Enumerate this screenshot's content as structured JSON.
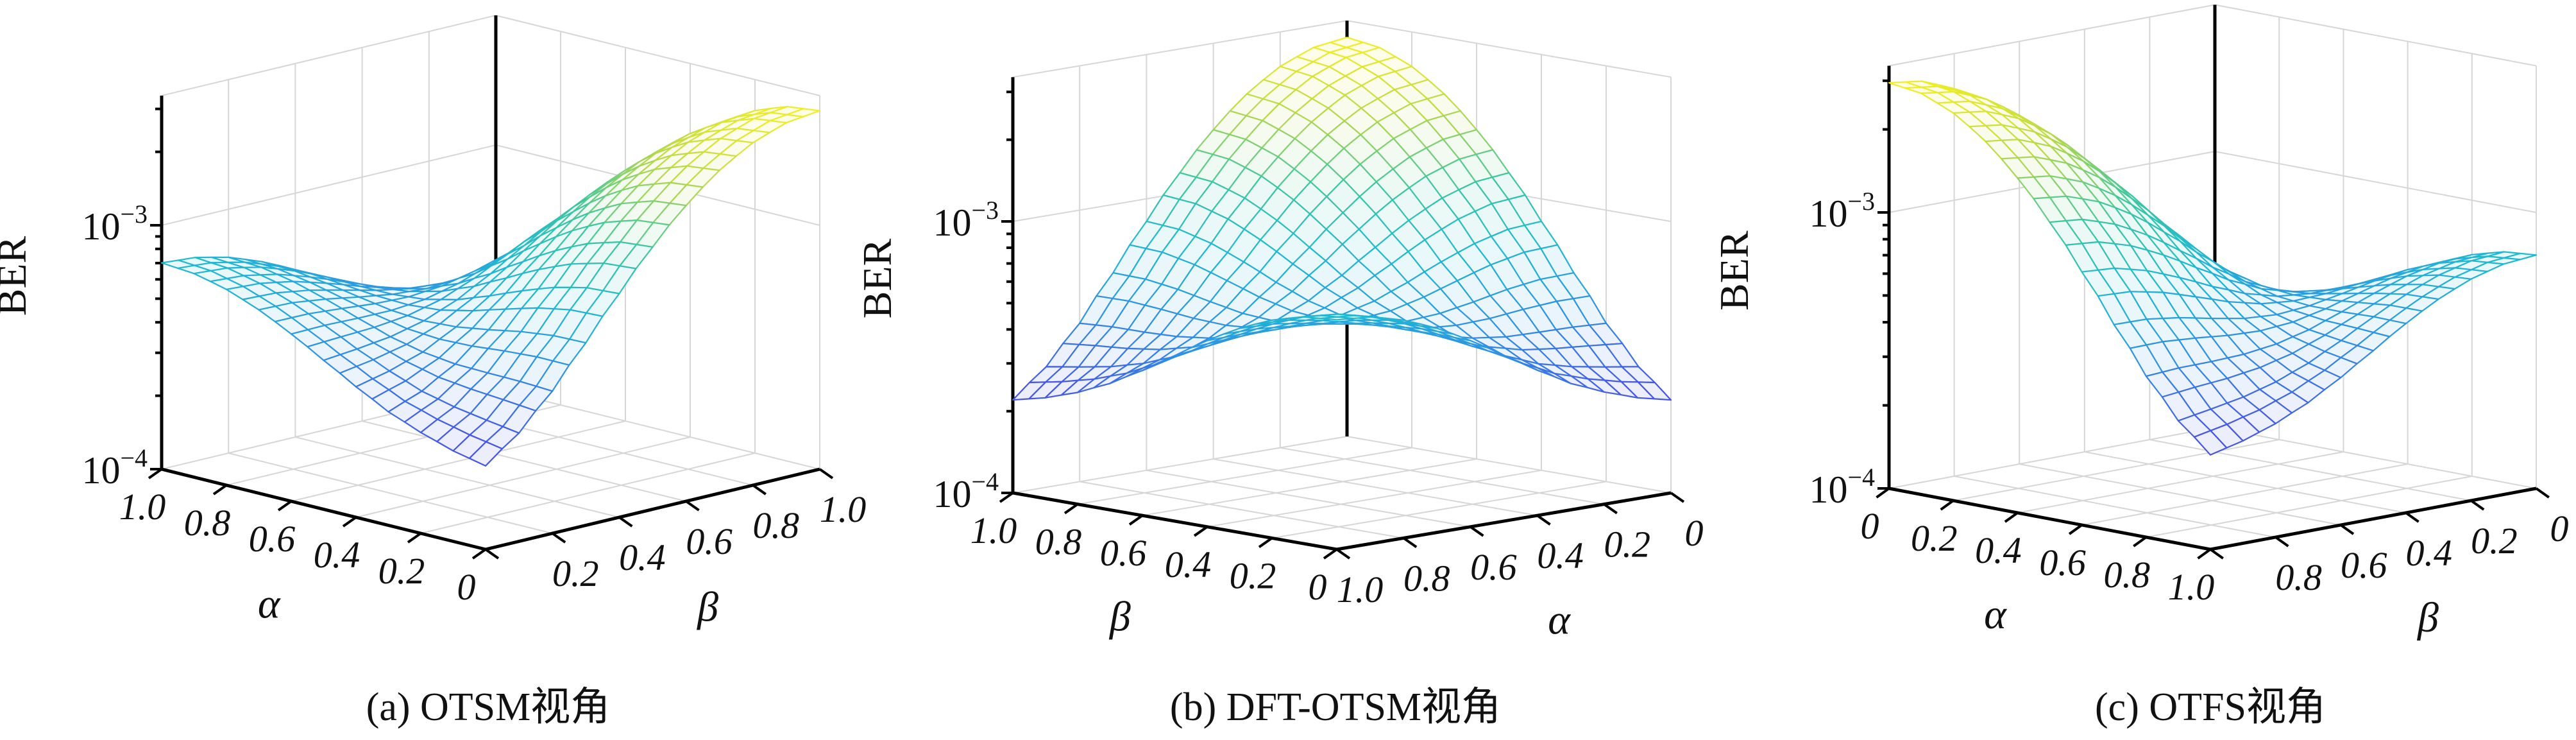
{
  "chart_data": {
    "type": "surface",
    "title": "",
    "z_name": "BER",
    "z_scale": "log",
    "zlim": [
      0.0001,
      0.0034
    ],
    "grid": true,
    "alpha": [
      0,
      0.1,
      0.2,
      0.3,
      0.4,
      0.5,
      0.6,
      0.7,
      0.8,
      0.9,
      1.0
    ],
    "beta": [
      0,
      0.1,
      0.2,
      0.3,
      0.4,
      0.5,
      0.6,
      0.7,
      0.8,
      0.9,
      1.0
    ],
    "ber_multiplier": 0.0001,
    "ber_rows_by_alpha_cols_by_beta": [
      [
        2.2,
        2.78,
        3.83,
        5.6,
        8.26,
        11.89,
        16.32,
        21.08,
        25.38,
        28.41,
        29.5
      ],
      [
        2.35,
        2.91,
        3.89,
        5.56,
        8.1,
        11.56,
        15.79,
        20.35,
        24.46,
        27.37,
        28.42
      ],
      [
        2.59,
        3.06,
        3.91,
        5.35,
        7.53,
        10.56,
        14.27,
        18.28,
        21.91,
        24.47,
        25.38
      ],
      [
        2.92,
        3.29,
        3.94,
        5.05,
        6.76,
        9.16,
        12.12,
        15.35,
        18.28,
        20.35,
        21.08
      ],
      [
        3.43,
        3.69,
        4.09,
        4.81,
        5.97,
        7.65,
        9.78,
        12.12,
        14.28,
        15.79,
        16.32
      ],
      [
        4.08,
        4.21,
        4.38,
        4.72,
        5.34,
        6.33,
        7.65,
        9.16,
        10.56,
        11.56,
        11.89
      ],
      [
        4.85,
        4.88,
        4.84,
        4.83,
        4.97,
        5.35,
        5.97,
        6.76,
        7.54,
        8.1,
        8.26
      ],
      [
        5.65,
        5.6,
        5.37,
        5.08,
        4.83,
        4.72,
        4.81,
        5.06,
        5.36,
        5.57,
        5.6
      ],
      [
        6.35,
        6.23,
        5.88,
        5.36,
        4.83,
        4.38,
        4.09,
        3.95,
        3.91,
        3.9,
        3.83
      ],
      [
        6.84,
        6.68,
        6.24,
        5.59,
        4.88,
        4.21,
        3.67,
        3.3,
        3.06,
        2.91,
        2.78
      ],
      [
        7.01,
        6.84,
        6.35,
        5.65,
        4.85,
        4.07,
        3.42,
        2.92,
        2.58,
        2.35,
        2.2
      ]
    ],
    "colormap": [
      "#3b3bd4",
      "#4656e6",
      "#2f8fe6",
      "#1fb8d2",
      "#3cc7a0",
      "#b8d84a",
      "#f5f020"
    ],
    "z_ticks": [
      {
        "value": 0.0001,
        "base": "10",
        "exp": "−4"
      },
      {
        "value": 0.001,
        "base": "10",
        "exp": "−3"
      }
    ],
    "panels": [
      {
        "caption": "(a) OTSM视角",
        "z_label": "BER",
        "left_axis": {
          "var": "alpha",
          "label": "α",
          "front_value": 0,
          "end_value": 1,
          "ticks": [
            {
              "v": 1.0,
              "t": "1.0"
            },
            {
              "v": 0.8,
              "t": "0.8"
            },
            {
              "v": 0.6,
              "t": "0.6"
            },
            {
              "v": 0.4,
              "t": "0.4"
            },
            {
              "v": 0.2,
              "t": "0.2"
            },
            {
              "v": 0,
              "t": "0"
            }
          ]
        },
        "right_axis": {
          "var": "beta",
          "label": "β",
          "front_value": 0,
          "end_value": 1,
          "ticks": [
            {
              "v": 0.2,
              "t": "0.2"
            },
            {
              "v": 0.4,
              "t": "0.4"
            },
            {
              "v": 0.6,
              "t": "0.6"
            },
            {
              "v": 0.8,
              "t": "0.8"
            },
            {
              "v": 1.0,
              "t": "1.0"
            }
          ]
        }
      },
      {
        "caption": "(b) DFT-OTSM视角",
        "z_label": "BER",
        "left_axis": {
          "var": "beta",
          "label": "β",
          "front_value": 0,
          "end_value": 1,
          "ticks": [
            {
              "v": 1.0,
              "t": "1.0"
            },
            {
              "v": 0.8,
              "t": "0.8"
            },
            {
              "v": 0.6,
              "t": "0.6"
            },
            {
              "v": 0.4,
              "t": "0.4"
            },
            {
              "v": 0.2,
              "t": "0.2"
            },
            {
              "v": 0,
              "t": "0"
            }
          ]
        },
        "right_axis": {
          "var": "alpha",
          "label": "α",
          "front_value": 1,
          "end_value": 0,
          "ticks": [
            {
              "v": 1.0,
              "t": "1.0"
            },
            {
              "v": 0.8,
              "t": "0.8"
            },
            {
              "v": 0.6,
              "t": "0.6"
            },
            {
              "v": 0.4,
              "t": "0.4"
            },
            {
              "v": 0.2,
              "t": "0.2"
            },
            {
              "v": 0,
              "t": "0"
            }
          ]
        }
      },
      {
        "caption": "(c) OTFS视角",
        "z_label": "BER",
        "left_axis": {
          "var": "alpha",
          "label": "α",
          "front_value": 1,
          "end_value": 0,
          "ticks": [
            {
              "v": 0,
              "t": "0"
            },
            {
              "v": 0.2,
              "t": "0.2"
            },
            {
              "v": 0.4,
              "t": "0.4"
            },
            {
              "v": 0.6,
              "t": "0.6"
            },
            {
              "v": 0.8,
              "t": "0.8"
            },
            {
              "v": 1.0,
              "t": "1.0"
            }
          ]
        },
        "right_axis": {
          "var": "beta",
          "label": "β",
          "front_value": 1,
          "end_value": 0,
          "ticks": [
            {
              "v": 0.8,
              "t": "0.8"
            },
            {
              "v": 0.6,
              "t": "0.6"
            },
            {
              "v": 0.4,
              "t": "0.4"
            },
            {
              "v": 0.2,
              "t": "0.2"
            },
            {
              "v": 0,
              "t": "0"
            }
          ]
        }
      }
    ]
  }
}
